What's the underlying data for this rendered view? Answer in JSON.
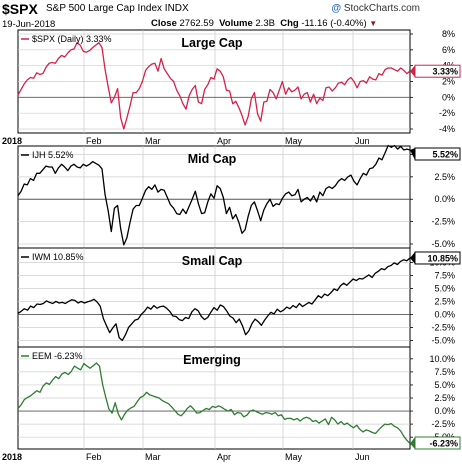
{
  "header": {
    "symbol": "$SPX",
    "name": "S&P 500 Large Cap Index  INDX",
    "date": "19-Jun-2018",
    "brand_mark": "@",
    "brand": "StockCharts.com",
    "close_label": "Close",
    "close_value": "2762.59",
    "volume_label": "Volume",
    "volume_value": "2.3B",
    "chg_label": "Chg",
    "chg_value": "-11.16 (-0.40%)",
    "chg_arrow": "▼"
  },
  "chart_data": [
    {
      "type": "line",
      "title": "Large Cap",
      "legend": "$SPX (Daily) 3.33%",
      "last_value_tag": "3.33%",
      "color": "#d6214a",
      "ylim": [
        -4,
        8
      ],
      "yticks": [
        -4,
        -2,
        0,
        2,
        4,
        6,
        8
      ],
      "ytick_labels": [
        "-4%",
        "-2%",
        "0%",
        "2%",
        "4%",
        "6%",
        "8%"
      ],
      "xtick_labels": [
        "2018",
        "Feb",
        "Mar",
        "Apr",
        "May",
        "Jun"
      ],
      "values": [
        0.3,
        1.0,
        1.7,
        2.2,
        2.5,
        2.4,
        3.1,
        2.9,
        3.0,
        3.8,
        4.3,
        4.4,
        4.3,
        4.9,
        5.3,
        5.1,
        5.6,
        6.0,
        6.1,
        6.9,
        6.6,
        5.8,
        5.7,
        5.9,
        6.3,
        6.6,
        6.9,
        6.3,
        3.5,
        1.3,
        -0.7,
        0.0,
        1.1,
        -2.6,
        -4.0,
        -2.6,
        -1.1,
        0.6,
        0.6,
        1.1,
        2.0,
        3.4,
        3.9,
        4.2,
        4.3,
        3.3,
        4.9,
        3.6,
        3.0,
        2.4,
        2.0,
        0.9,
        0.2,
        -0.8,
        -1.5,
        0.2,
        1.0,
        1.5,
        -0.6,
        -0.8,
        1.0,
        1.6,
        2.5,
        2.3,
        3.6,
        3.3,
        2.6,
        0.9,
        0.8,
        -0.8,
        -0.5,
        -1.3,
        -2.3,
        -3.5,
        -2.4,
        -0.2,
        0.6,
        -2.1,
        -3.0,
        -0.6,
        -0.5,
        1.0,
        0.6,
        -0.2,
        0.9,
        2.0,
        0.4,
        1.2,
        0.7,
        0.9,
        1.3,
        -0.2,
        0.4,
        0.6,
        -0.6,
        0.4,
        -0.8,
        -0.1,
        -0.4,
        1.2,
        1.3,
        0.8,
        1.2,
        1.8,
        1.9,
        1.6,
        2.2,
        2.5,
        2.0,
        1.2,
        2.0,
        2.1,
        1.8,
        2.6,
        2.3,
        2.2,
        3.0,
        2.8,
        3.5,
        3.7,
        3.7,
        3.5,
        3.3,
        3.7,
        3.4,
        3.0,
        3.3
      ]
    },
    {
      "type": "line",
      "title": "Mid Cap",
      "legend": "IJH 5.52%",
      "last_value_tag": "5.52%",
      "color": "#000000",
      "ylim": [
        -5,
        5.5
      ],
      "yticks": [
        -5,
        -2.5,
        0,
        2.5,
        5
      ],
      "ytick_labels": [
        "-5.0%",
        "-2.5%",
        "0.0%",
        "2.5%",
        "5.0%"
      ],
      "xtick_labels": [
        "2018",
        "Feb",
        "Mar",
        "Apr",
        "May",
        "Jun"
      ],
      "values": [
        0.4,
        0.9,
        1.7,
        1.6,
        2.3,
        2.1,
        2.9,
        2.9,
        3.3,
        3.7,
        3.6,
        3.6,
        2.9,
        3.5,
        3.9,
        3.6,
        3.2,
        3.7,
        3.9,
        3.6,
        3.5,
        3.9,
        3.7,
        3.9,
        4.2,
        4.0,
        3.8,
        3.4,
        0.5,
        -1.3,
        -3.6,
        -1.0,
        -0.7,
        -3.3,
        -5.1,
        -4.3,
        -2.6,
        -1.1,
        -0.7,
        -0.7,
        0.1,
        1.0,
        1.4,
        1.1,
        1.6,
        0.8,
        1.1,
        1.0,
        0.2,
        -0.6,
        -1.0,
        -1.6,
        -1.7,
        -1.1,
        -1.6,
        -0.8,
        0.0,
        0.9,
        -0.5,
        -1.6,
        -1.5,
        -0.3,
        0.6,
        0.1,
        1.5,
        1.2,
        0.2,
        -1.6,
        -0.9,
        -2.2,
        -1.7,
        -2.6,
        -3.8,
        -3.4,
        -1.9,
        -0.7,
        -0.3,
        -1.3,
        -2.4,
        -1.2,
        -0.5,
        0.0,
        -0.8,
        -0.5,
        -0.6,
        0.1,
        0.6,
        0.8,
        0.4,
        0.5,
        1.1,
        -0.3,
        0.0,
        0.2,
        -0.2,
        0.4,
        -0.3,
        0.8,
        0.4,
        1.2,
        1.4,
        1.2,
        1.5,
        2.0,
        2.3,
        2.1,
        2.5,
        2.7,
        2.0,
        1.6,
        2.3,
        2.9,
        2.7,
        3.4,
        3.5,
        3.9,
        4.6,
        4.4,
        5.2,
        6.0,
        5.8,
        6.0,
        5.6,
        5.9,
        5.5,
        5.6,
        5.5
      ]
    },
    {
      "type": "line",
      "title": "Small Cap",
      "legend": "IWM 10.85%",
      "last_value_tag": "10.85%",
      "color": "#000000",
      "ylim": [
        -5.5,
        12
      ],
      "yticks": [
        -5,
        -2.5,
        0,
        2.5,
        5,
        7.5,
        10
      ],
      "ytick_labels": [
        "-5.0%",
        "-2.5%",
        "0.0%",
        "2.5%",
        "5.0%",
        "7.5%",
        "10.0%"
      ],
      "xtick_labels": [
        "2018",
        "Feb",
        "Mar",
        "Apr",
        "May",
        "Jun"
      ],
      "values": [
        0.2,
        0.6,
        1.1,
        0.8,
        1.6,
        1.3,
        2.0,
        1.9,
        2.1,
        2.6,
        2.3,
        2.1,
        2.5,
        2.2,
        2.3,
        2.1,
        2.5,
        2.8,
        2.7,
        2.2,
        2.5,
        2.2,
        2.4,
        2.6,
        2.9,
        2.4,
        1.6,
        -0.8,
        -2.2,
        -3.5,
        -2.6,
        -1.8,
        -4.5,
        -5.0,
        -3.9,
        -2.5,
        -1.8,
        -1.1,
        -0.9,
        0.0,
        0.6,
        1.4,
        1.0,
        1.7,
        1.2,
        1.5,
        1.6,
        1.2,
        0.6,
        -0.3,
        -0.4,
        -1.0,
        -1.2,
        -0.6,
        -0.8,
        0.5,
        1.1,
        0.7,
        -0.4,
        -1.0,
        -0.6,
        0.4,
        1.3,
        0.8,
        1.8,
        1.5,
        0.7,
        -0.3,
        -0.7,
        -1.6,
        -0.9,
        -2.2,
        -3.9,
        -3.2,
        -1.8,
        -0.9,
        -1.4,
        -2.1,
        -1.1,
        -0.3,
        0.4,
        0.1,
        1.0,
        0.5,
        0.8,
        1.4,
        1.1,
        1.7,
        1.3,
        2.1,
        1.5,
        1.9,
        2.3,
        2.0,
        2.8,
        3.6,
        3.2,
        3.9,
        3.6,
        4.2,
        4.9,
        4.6,
        5.5,
        6.0,
        5.6,
        6.2,
        6.8,
        6.5,
        6.9,
        6.8,
        7.2,
        7.6,
        7.1,
        7.9,
        8.3,
        8.8,
        8.6,
        9.2,
        9.4,
        9.9,
        9.6,
        10.2,
        10.5,
        10.3,
        10.85
      ]
    },
    {
      "type": "line",
      "title": "Emerging",
      "legend": "EEM -6.23%",
      "last_value_tag": "-6.23%",
      "color": "#2e7d32",
      "ylim": [
        -6.5,
        11.5
      ],
      "yticks": [
        -5,
        -2.5,
        0,
        2.5,
        5,
        7.5,
        10
      ],
      "ytick_labels": [
        "-5.0%",
        "-2.5%",
        "0.0%",
        "2.5%",
        "5.0%",
        "7.5%",
        "10.0%"
      ],
      "xtick_labels": [
        "2018",
        "Feb",
        "Mar",
        "Apr",
        "May",
        "Jun"
      ],
      "values": [
        0.5,
        1.2,
        2.2,
        2.6,
        2.9,
        3.4,
        3.9,
        3.6,
        4.8,
        5.4,
        5.1,
        5.9,
        6.6,
        6.2,
        7.1,
        7.4,
        7.0,
        7.6,
        8.6,
        8.2,
        7.9,
        9.1,
        8.6,
        8.2,
        8.7,
        9.2,
        8.6,
        5.0,
        2.6,
        0.4,
        -0.4,
        1.6,
        -0.6,
        -1.7,
        -0.6,
        0.2,
        0.6,
        0.9,
        1.8,
        2.6,
        2.9,
        3.6,
        3.1,
        2.9,
        2.7,
        2.5,
        2.0,
        1.7,
        1.4,
        0.8,
        0.1,
        -0.6,
        -0.9,
        -0.3,
        0.5,
        1.0,
        0.4,
        -0.4,
        -0.3,
        0.1,
        0.5,
        0.3,
        0.9,
        0.7,
        1.0,
        0.7,
        0.3,
        0.0,
        0.3,
        -0.7,
        -0.3,
        -0.4,
        -1.1,
        -0.8,
        0.0,
        0.2,
        -0.1,
        -0.4,
        -0.6,
        -0.3,
        -0.4,
        -0.6,
        -0.3,
        -0.9,
        -0.7,
        -1.6,
        -1.4,
        -1.4,
        -1.7,
        -1.4,
        -1.9,
        -1.4,
        -1.2,
        -1.4,
        -2.0,
        -1.8,
        -2.3,
        -1.9,
        -1.5,
        -2.6,
        -1.2,
        -1.7,
        -2.5,
        -2.0,
        -2.6,
        -2.3,
        -2.8,
        -3.2,
        -2.7,
        -3.5,
        -4.0,
        -3.6,
        -3.8,
        -4.1,
        -4.3,
        -3.6,
        -3.0,
        -2.5,
        -2.6,
        -2.4,
        -2.9,
        -3.2,
        -3.8,
        -4.8,
        -5.6,
        -6.23
      ]
    }
  ]
}
